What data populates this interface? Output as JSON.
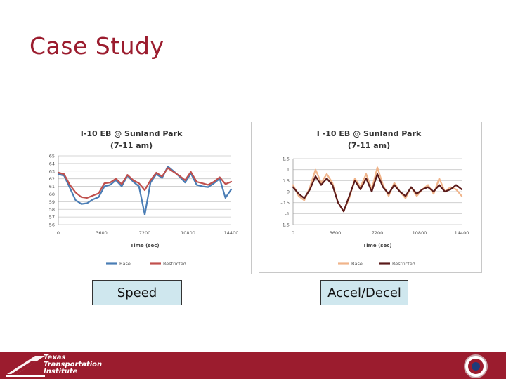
{
  "slide": {
    "title": "Case Study"
  },
  "captions": {
    "speed": "Speed",
    "accel": "Accel/Decel"
  },
  "footer": {
    "logo_lines": [
      "Texas",
      "Transportation",
      "Institute"
    ]
  },
  "colors": {
    "brand": "#9b1c2e",
    "caption_bg": "#cfe7ee"
  },
  "chart_data": [
    {
      "type": "line",
      "title": "I-10 EB @ Sunland Park",
      "subtitle": "(7-11 am)",
      "xlabel": "Time (sec)",
      "ylabel": "",
      "xlim": [
        0,
        14400
      ],
      "ylim": [
        56,
        65
      ],
      "xticks": [
        "0",
        "3600",
        "7200",
        "10800",
        "14400"
      ],
      "yticks": [
        "56",
        "57",
        "58",
        "59",
        "60",
        "61",
        "62",
        "63",
        "64",
        "65"
      ],
      "grid": true,
      "legend": "bottom",
      "x": [
        0,
        480,
        960,
        1440,
        1920,
        2400,
        2880,
        3360,
        3840,
        4320,
        4800,
        5280,
        5760,
        6240,
        6720,
        7200,
        7680,
        8160,
        8640,
        9120,
        9600,
        10080,
        10560,
        11040,
        11520,
        12000,
        12480,
        12960,
        13440,
        13920,
        14400
      ],
      "series": [
        {
          "name": "Base",
          "color": "#4a7db5",
          "values": [
            62.6,
            62.4,
            60.8,
            59.2,
            58.7,
            58.8,
            59.3,
            59.6,
            61.0,
            61.2,
            61.8,
            61.0,
            62.4,
            61.6,
            61.0,
            57.3,
            61.5,
            62.6,
            62.1,
            63.6,
            63.0,
            62.3,
            61.5,
            62.7,
            61.2,
            61.0,
            60.9,
            61.4,
            62.0,
            59.5,
            60.6
          ]
        },
        {
          "name": "Restricted",
          "color": "#c0504d",
          "values": [
            62.8,
            62.6,
            61.2,
            60.2,
            59.6,
            59.5,
            59.8,
            60.1,
            61.4,
            61.5,
            62.0,
            61.3,
            62.5,
            61.8,
            61.4,
            60.5,
            61.8,
            62.8,
            62.3,
            63.4,
            62.9,
            62.4,
            61.8,
            62.9,
            61.6,
            61.4,
            61.2,
            61.6,
            62.2,
            61.3,
            61.6
          ]
        }
      ]
    },
    {
      "type": "line",
      "title": "I -10 EB @ Sunland Park",
      "subtitle": "(7-11 am)",
      "xlabel": "Time (sec)",
      "ylabel": "",
      "xlim": [
        0,
        14400
      ],
      "ylim": [
        -1.5,
        1.5
      ],
      "xticks": [
        "0",
        "3600",
        "7200",
        "10800",
        "14400"
      ],
      "yticks": [
        "-1.5",
        "-1",
        "-0.5",
        "0",
        "0.5",
        "1",
        "1.5"
      ],
      "grid": true,
      "legend": "bottom",
      "x": [
        0,
        480,
        960,
        1440,
        1920,
        2400,
        2880,
        3360,
        3840,
        4320,
        4800,
        5280,
        5760,
        6240,
        6720,
        7200,
        7680,
        8160,
        8640,
        9120,
        9600,
        10080,
        10560,
        11040,
        11520,
        12000,
        12480,
        12960,
        13440,
        13920,
        14400
      ],
      "series": [
        {
          "name": "Base",
          "color": "#f0b48a",
          "values": [
            0.3,
            -0.2,
            -0.4,
            0.2,
            1.0,
            0.4,
            0.8,
            0.4,
            -0.5,
            -0.9,
            -0.3,
            0.6,
            0.2,
            0.8,
            0.1,
            1.1,
            0.3,
            -0.2,
            0.4,
            0.0,
            -0.3,
            0.2,
            -0.2,
            0.1,
            0.3,
            -0.1,
            0.6,
            0.0,
            0.2,
            0.1,
            -0.2
          ]
        },
        {
          "name": "Restricted",
          "color": "#5a1a1a",
          "values": [
            0.2,
            -0.1,
            -0.3,
            0.1,
            0.7,
            0.3,
            0.6,
            0.3,
            -0.5,
            -0.9,
            -0.2,
            0.5,
            0.1,
            0.6,
            0.0,
            0.8,
            0.2,
            -0.1,
            0.3,
            0.0,
            -0.2,
            0.2,
            -0.1,
            0.1,
            0.2,
            0.0,
            0.3,
            0.0,
            0.1,
            0.3,
            0.1
          ]
        }
      ]
    }
  ]
}
